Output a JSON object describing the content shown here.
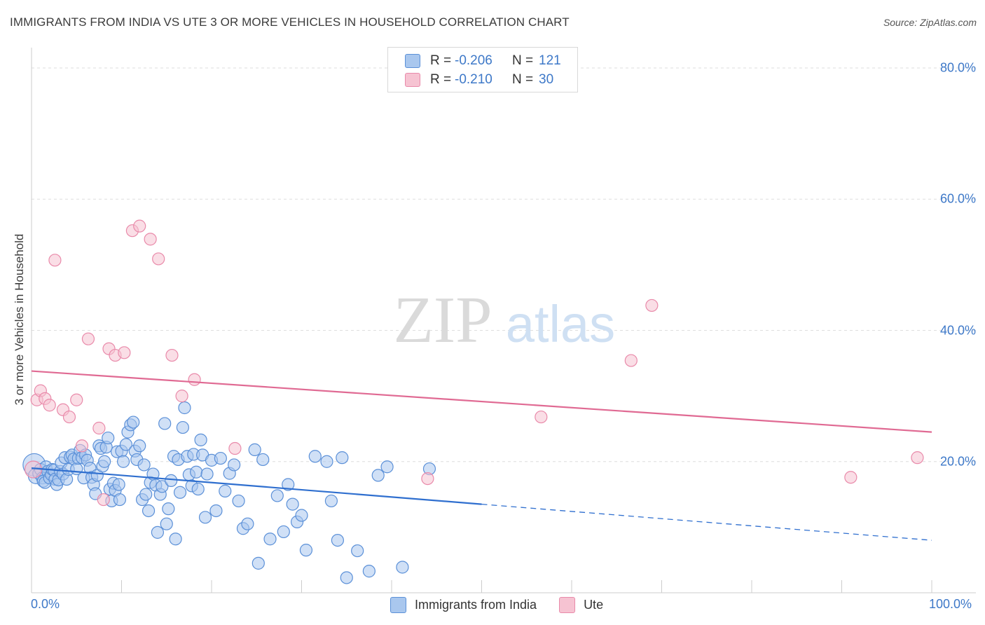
{
  "header": {
    "title": "IMMIGRANTS FROM INDIA VS UTE 3 OR MORE VEHICLES IN HOUSEHOLD CORRELATION CHART",
    "source": "Source: ZipAtlas.com"
  },
  "watermark": {
    "zip": "ZIP",
    "atlas": "atlas"
  },
  "legend_top": {
    "rows": [
      {
        "r_label": "R =",
        "r_value": "-0.206",
        "n_label": "N =",
        "n_value": "121"
      },
      {
        "r_label": "R =",
        "r_value": "-0.210",
        "n_label": "N =",
        "n_value": "30"
      }
    ]
  },
  "legend_bottom": {
    "items": [
      {
        "label": "Immigrants from India"
      },
      {
        "label": "Ute"
      }
    ]
  },
  "colors": {
    "india_fill": "#a9c7ee",
    "india_stroke": "#5b90d8",
    "india_line": "#2f6fcf",
    "ute_fill": "#f6c3d2",
    "ute_stroke": "#e98aaa",
    "ute_line": "#e06a93",
    "tick_text": "#3d78c8",
    "grid": "#dedede"
  },
  "chart_data": {
    "type": "scatter",
    "title": "IMMIGRANTS FROM INDIA VS UTE 3 OR MORE VEHICLES IN HOUSEHOLD CORRELATION CHART",
    "xlabel": "",
    "ylabel": "3 or more Vehicles in Household",
    "xlim": [
      0,
      100
    ],
    "ylim": [
      0,
      80
    ],
    "x_tick_labels": [
      "0.0%",
      "100.0%"
    ],
    "y_ticks": [
      20,
      40,
      60,
      80
    ],
    "y_tick_labels": [
      "20.0%",
      "40.0%",
      "60.0%",
      "80.0%"
    ],
    "grid": true,
    "legend_position": "top-center",
    "series": [
      {
        "name": "Immigrants from India",
        "R": -0.206,
        "N": 121,
        "trend": {
          "x_start": 0,
          "y_start": 19.0,
          "x_solid_end": 50,
          "x_end": 100,
          "y_end": 8.0
        },
        "points": [
          [
            0.3,
            19.5
          ],
          [
            0.5,
            17.8
          ],
          [
            0.8,
            18.2
          ],
          [
            1.0,
            18.8
          ],
          [
            1.2,
            17.5
          ],
          [
            1.3,
            17.0
          ],
          [
            1.5,
            16.8
          ],
          [
            1.6,
            19.2
          ],
          [
            1.8,
            18.5
          ],
          [
            2.0,
            17.5
          ],
          [
            2.2,
            18.0
          ],
          [
            2.3,
            18.8
          ],
          [
            2.5,
            18.7
          ],
          [
            2.6,
            17.3
          ],
          [
            2.8,
            16.5
          ],
          [
            3.0,
            17.2
          ],
          [
            3.2,
            18.5
          ],
          [
            3.3,
            19.8
          ],
          [
            3.5,
            18.1
          ],
          [
            3.7,
            20.6
          ],
          [
            3.9,
            17.3
          ],
          [
            4.1,
            18.8
          ],
          [
            4.3,
            20.7
          ],
          [
            4.5,
            21.0
          ],
          [
            4.7,
            20.4
          ],
          [
            5.0,
            18.9
          ],
          [
            5.2,
            20.5
          ],
          [
            5.4,
            21.7
          ],
          [
            5.6,
            20.6
          ],
          [
            5.8,
            17.5
          ],
          [
            6.0,
            21.0
          ],
          [
            6.2,
            20.2
          ],
          [
            6.5,
            19.0
          ],
          [
            6.7,
            17.6
          ],
          [
            6.9,
            16.5
          ],
          [
            7.1,
            15.1
          ],
          [
            7.3,
            17.9
          ],
          [
            7.5,
            22.4
          ],
          [
            7.7,
            22.0
          ],
          [
            7.9,
            19.3
          ],
          [
            8.1,
            20.0
          ],
          [
            8.3,
            22.2
          ],
          [
            8.5,
            23.6
          ],
          [
            8.7,
            15.8
          ],
          [
            8.9,
            14.0
          ],
          [
            9.1,
            16.7
          ],
          [
            9.3,
            15.6
          ],
          [
            9.5,
            21.5
          ],
          [
            9.7,
            16.5
          ],
          [
            9.8,
            14.2
          ],
          [
            10.0,
            21.6
          ],
          [
            10.2,
            20.0
          ],
          [
            10.5,
            22.6
          ],
          [
            10.7,
            24.5
          ],
          [
            11.0,
            25.6
          ],
          [
            11.3,
            26.0
          ],
          [
            11.5,
            21.6
          ],
          [
            11.7,
            20.3
          ],
          [
            12.0,
            22.4
          ],
          [
            12.3,
            14.2
          ],
          [
            12.5,
            19.5
          ],
          [
            12.7,
            15.0
          ],
          [
            13.0,
            12.5
          ],
          [
            13.2,
            16.8
          ],
          [
            13.5,
            18.1
          ],
          [
            13.8,
            16.4
          ],
          [
            14.0,
            9.2
          ],
          [
            14.3,
            15.0
          ],
          [
            14.5,
            16.2
          ],
          [
            14.8,
            25.8
          ],
          [
            15.0,
            10.5
          ],
          [
            15.2,
            12.8
          ],
          [
            15.5,
            17.1
          ],
          [
            15.8,
            20.8
          ],
          [
            16.0,
            8.2
          ],
          [
            16.3,
            20.3
          ],
          [
            16.5,
            15.3
          ],
          [
            16.8,
            25.2
          ],
          [
            17.0,
            28.2
          ],
          [
            17.3,
            20.8
          ],
          [
            17.5,
            18.0
          ],
          [
            17.8,
            16.3
          ],
          [
            18.0,
            21.1
          ],
          [
            18.3,
            18.4
          ],
          [
            18.5,
            15.8
          ],
          [
            18.8,
            23.3
          ],
          [
            19.0,
            21.0
          ],
          [
            19.3,
            11.5
          ],
          [
            19.5,
            18.1
          ],
          [
            20.0,
            20.2
          ],
          [
            20.5,
            12.5
          ],
          [
            21.0,
            20.5
          ],
          [
            21.5,
            15.5
          ],
          [
            22.0,
            18.2
          ],
          [
            22.5,
            19.5
          ],
          [
            23.0,
            14.0
          ],
          [
            23.5,
            9.8
          ],
          [
            24.0,
            10.5
          ],
          [
            24.8,
            21.8
          ],
          [
            25.2,
            4.5
          ],
          [
            25.7,
            20.3
          ],
          [
            26.5,
            8.2
          ],
          [
            27.3,
            14.8
          ],
          [
            28.0,
            9.3
          ],
          [
            28.5,
            16.5
          ],
          [
            29.0,
            13.5
          ],
          [
            29.5,
            10.8
          ],
          [
            30.0,
            11.8
          ],
          [
            30.5,
            6.5
          ],
          [
            31.5,
            20.8
          ],
          [
            32.8,
            20.0
          ],
          [
            33.3,
            14.0
          ],
          [
            34.0,
            8.0
          ],
          [
            34.5,
            20.6
          ],
          [
            35.0,
            2.3
          ],
          [
            36.2,
            6.4
          ],
          [
            37.5,
            3.3
          ],
          [
            38.5,
            17.9
          ],
          [
            39.5,
            19.2
          ],
          [
            41.2,
            3.9
          ],
          [
            44.2,
            18.9
          ]
        ]
      },
      {
        "name": "Ute",
        "R": -0.21,
        "N": 30,
        "trend": {
          "x_start": 0,
          "y_start": 33.8,
          "x_end": 100,
          "y_end": 24.5
        },
        "points": [
          [
            0.2,
            18.8
          ],
          [
            0.6,
            29.4
          ],
          [
            1.0,
            30.8
          ],
          [
            1.5,
            29.6
          ],
          [
            2.0,
            28.6
          ],
          [
            2.6,
            50.7
          ],
          [
            3.5,
            27.9
          ],
          [
            4.2,
            26.8
          ],
          [
            5.0,
            29.4
          ],
          [
            5.6,
            22.4
          ],
          [
            6.3,
            38.7
          ],
          [
            7.5,
            25.1
          ],
          [
            8.0,
            14.2
          ],
          [
            8.6,
            37.2
          ],
          [
            9.3,
            36.2
          ],
          [
            10.3,
            36.6
          ],
          [
            11.2,
            55.2
          ],
          [
            12.0,
            55.9
          ],
          [
            13.2,
            53.9
          ],
          [
            14.1,
            50.9
          ],
          [
            15.6,
            36.2
          ],
          [
            16.7,
            30.0
          ],
          [
            18.1,
            32.5
          ],
          [
            22.6,
            22.0
          ],
          [
            44.0,
            17.4
          ],
          [
            56.6,
            26.8
          ],
          [
            66.6,
            35.4
          ],
          [
            68.9,
            43.8
          ],
          [
            91.0,
            17.6
          ],
          [
            98.4,
            20.6
          ]
        ]
      }
    ]
  }
}
